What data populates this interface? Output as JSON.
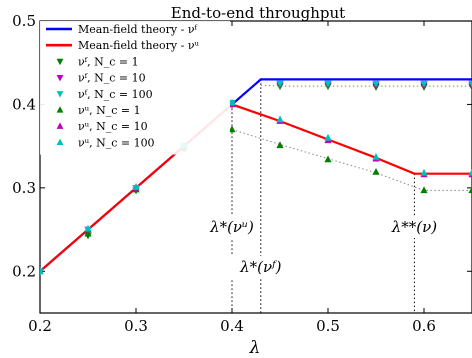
{
  "chart_data": {
    "type": "line",
    "title": "End-to-end throughput",
    "xlabel": "λ",
    "ylabel": "",
    "xlim": [
      0.2,
      0.65
    ],
    "ylim": [
      0.15,
      0.5
    ],
    "x_ticks": [
      0.2,
      0.3,
      0.4,
      0.5,
      0.6
    ],
    "x_tick_labels": [
      "0.2",
      "0.3",
      "0.4",
      "0.5",
      "0.6"
    ],
    "y_ticks": [
      0.2,
      0.3,
      0.4,
      0.5
    ],
    "y_tick_labels": [
      "0.2",
      "0.3",
      "0.4",
      "0.5"
    ],
    "grid": false,
    "legend_position": "top-left",
    "lines": [
      {
        "name": "Mean-field theory - νᶠ",
        "color": "#0000ff",
        "x": [
          0.2,
          0.43,
          0.65
        ],
        "y": [
          0.2,
          0.43,
          0.43
        ]
      },
      {
        "name": "Mean-field theory - νᵘ",
        "color": "#ff0000",
        "x": [
          0.2,
          0.4,
          0.45,
          0.5,
          0.55,
          0.59,
          0.65
        ],
        "y": [
          0.2,
          0.4,
          0.38,
          0.358,
          0.336,
          0.317,
          0.317
        ]
      }
    ],
    "dotted_lines": [
      {
        "color": "#888888",
        "x": [
          0.4,
          0.45,
          0.5,
          0.55,
          0.6,
          0.65
        ],
        "y": [
          0.37,
          0.352,
          0.335,
          0.318,
          0.297,
          0.297
        ]
      },
      {
        "color": "#888888",
        "x": [
          0.43,
          0.45,
          0.5,
          0.55,
          0.6,
          0.65
        ],
        "y": [
          0.423,
          0.422,
          0.422,
          0.422,
          0.422,
          0.422
        ]
      }
    ],
    "series": [
      {
        "name": "νᶠ, N_c = 1",
        "marker": "triangle-down",
        "color": "#007f00",
        "x": [
          0.2,
          0.25,
          0.3,
          0.35,
          0.4,
          0.45,
          0.5,
          0.55,
          0.6,
          0.65
        ],
        "y": [
          0.2,
          0.243,
          0.297,
          0.347,
          0.4,
          0.422,
          0.422,
          0.421,
          0.421,
          0.421
        ]
      },
      {
        "name": "νᶠ, N_c = 10",
        "marker": "triangle-down",
        "color": "#bf00bf",
        "x": [
          0.2,
          0.25,
          0.3,
          0.35,
          0.4,
          0.45,
          0.5,
          0.55,
          0.6,
          0.65
        ],
        "y": [
          0.2,
          0.25,
          0.3,
          0.35,
          0.401,
          0.424,
          0.424,
          0.423,
          0.423,
          0.423
        ]
      },
      {
        "name": "νᶠ, N_c = 100",
        "marker": "triangle-down",
        "color": "#00bfbf",
        "x": [
          0.2,
          0.25,
          0.3,
          0.35,
          0.4,
          0.45,
          0.5,
          0.55,
          0.6,
          0.65
        ],
        "y": [
          0.2,
          0.25,
          0.3,
          0.35,
          0.402,
          0.425,
          0.425,
          0.425,
          0.425,
          0.425
        ]
      },
      {
        "name": "νᵘ, N_c = 1",
        "marker": "triangle-up",
        "color": "#007f00",
        "x": [
          0.2,
          0.25,
          0.3,
          0.35,
          0.4,
          0.45,
          0.5,
          0.55,
          0.6,
          0.65
        ],
        "y": [
          0.2,
          0.245,
          0.298,
          0.348,
          0.37,
          0.351,
          0.334,
          0.319,
          0.297,
          0.297
        ]
      },
      {
        "name": "νᵘ, N_c = 10",
        "marker": "triangle-up",
        "color": "#bf00bf",
        "x": [
          0.2,
          0.25,
          0.3,
          0.35,
          0.4,
          0.45,
          0.5,
          0.55,
          0.6,
          0.65
        ],
        "y": [
          0.2,
          0.25,
          0.3,
          0.35,
          0.4,
          0.38,
          0.357,
          0.335,
          0.316,
          0.316
        ]
      },
      {
        "name": "νᵘ, N_c = 100",
        "marker": "triangle-up",
        "color": "#00bfbf",
        "x": [
          0.2,
          0.25,
          0.3,
          0.35,
          0.4,
          0.45,
          0.5,
          0.55,
          0.6,
          0.65
        ],
        "y": [
          0.2,
          0.251,
          0.301,
          0.351,
          0.402,
          0.382,
          0.36,
          0.337,
          0.318,
          0.318
        ]
      }
    ],
    "annotations": [
      {
        "text": "λ*(νᵘ)",
        "x": 0.4
      },
      {
        "text": "λ*(νᶠ)",
        "x": 0.43
      },
      {
        "text": "λ**(ν)",
        "x": 0.59
      }
    ]
  }
}
